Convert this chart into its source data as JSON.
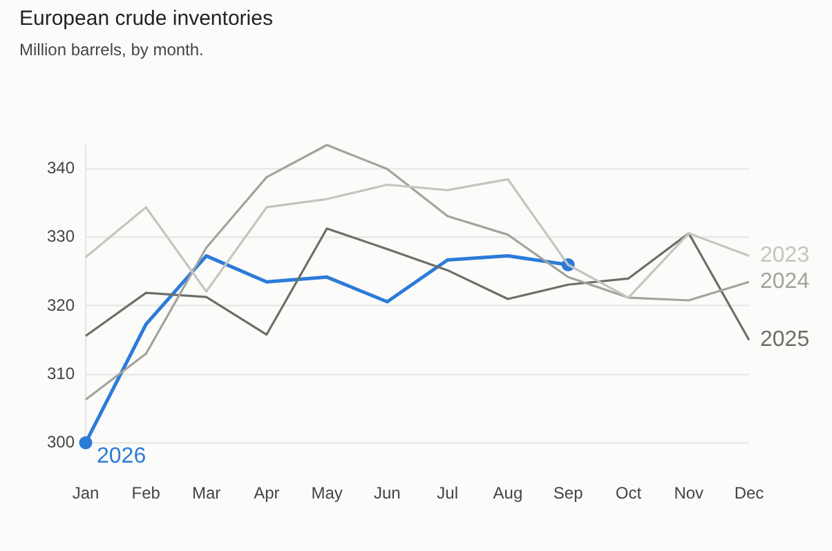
{
  "chart_data": {
    "type": "line",
    "title": "European crude inventories",
    "subtitle": "Million barrels, by month.",
    "categories": [
      "Jan",
      "Feb",
      "Mar",
      "Apr",
      "May",
      "Jun",
      "Jul",
      "Aug",
      "Sep",
      "Oct",
      "Nov",
      "Dec"
    ],
    "series": [
      {
        "name": "2023",
        "color": "#c4c4c0",
        "values": [
          327.1,
          334.4,
          322.1,
          334.4,
          335.6,
          337.7,
          336.9,
          338.5,
          326,
          321.2,
          330.6,
          327.3
        ]
      },
      {
        "name": "2024",
        "color": "#a3a29e",
        "values": [
          306.3,
          313,
          328.5,
          338.8,
          343.5,
          340,
          333.1,
          330.4,
          324.2,
          321.2,
          320.8,
          323.5
        ]
      },
      {
        "name": "2025",
        "color": "#6e6d69",
        "values": [
          315.6,
          321.9,
          321.3,
          315.8,
          331.3,
          328.3,
          325.2,
          321,
          323.1,
          324,
          330.6,
          315
        ]
      },
      {
        "name": "2026",
        "color": "#2b7bd9",
        "values": [
          300,
          317.3,
          327.3,
          323.5,
          324.2,
          320.6,
          326.7,
          327.3,
          326,
          null,
          null,
          null
        ]
      }
    ],
    "ylim": [
      300,
      343.5
    ],
    "yticks": [
      300,
      310,
      320,
      330,
      340
    ],
    "grid": "y",
    "legend": false,
    "line_style": "solid"
  }
}
